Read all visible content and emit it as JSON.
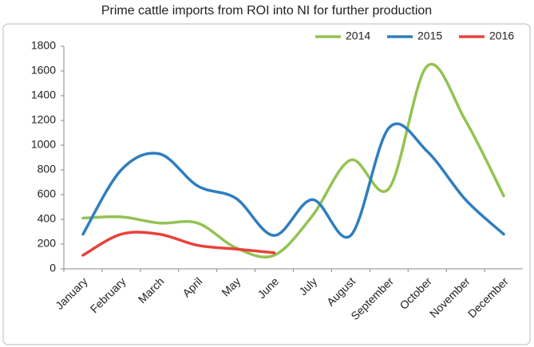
{
  "chart_data": {
    "type": "line",
    "title": "Prime cattle imports from ROI into NI for further production",
    "categories": [
      "January",
      "February",
      "March",
      "April",
      "May",
      "June",
      "July",
      "August",
      "September",
      "October",
      "November",
      "December"
    ],
    "series": [
      {
        "name": "2014",
        "color": "#92c353",
        "values": [
          410,
          420,
          370,
          370,
          170,
          110,
          430,
          880,
          650,
          1640,
          1200,
          590
        ]
      },
      {
        "name": "2015",
        "color": "#2f7ebf",
        "values": [
          280,
          800,
          930,
          670,
          570,
          270,
          560,
          270,
          1140,
          950,
          560,
          280
        ]
      },
      {
        "name": "2016",
        "color": "#e8413a",
        "values": [
          110,
          280,
          280,
          190,
          160,
          130,
          null,
          null,
          null,
          null,
          null,
          null
        ]
      }
    ],
    "ylim": [
      0,
      1800
    ],
    "yticks": [
      0,
      200,
      400,
      600,
      800,
      1000,
      1200,
      1400,
      1600,
      1800
    ],
    "grid": false,
    "smooth": true,
    "legend": "top-right"
  }
}
